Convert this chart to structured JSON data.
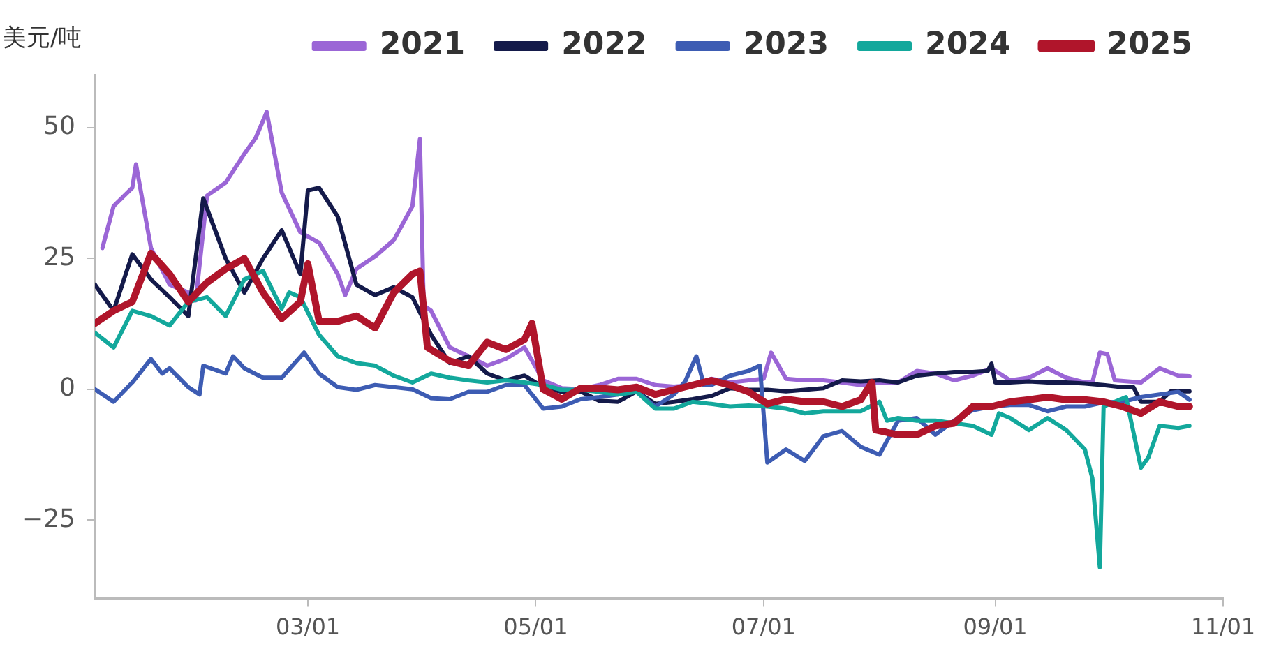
{
  "chart_data": {
    "type": "line",
    "ylabel": "美元/吨",
    "legend": "top",
    "grid": false,
    "marker": "none",
    "line_style": "solid",
    "xlim": [
      "--01-03",
      "--11-01"
    ],
    "xticks": [
      {
        "value": "--03-01",
        "label": "03/01"
      },
      {
        "value": "--05-01",
        "label": "05/01"
      },
      {
        "value": "--07-01",
        "label": "07/01"
      },
      {
        "value": "--09-01",
        "label": "09/01"
      },
      {
        "value": "--11-01",
        "label": "11/01"
      }
    ],
    "ylim": [
      -40,
      60
    ],
    "yticks": [
      {
        "value": -25,
        "label": "−25"
      },
      0,
      25,
      50
    ],
    "series": [
      {
        "name": "2021",
        "color": "#9b66d6",
        "x": [
          "--01-05",
          "--01-08",
          "--01-13",
          "--01-14",
          "--01-18",
          "--01-23",
          "--01-28",
          "--01-30",
          "--02-02",
          "--02-07",
          "--02-12",
          "--02-15",
          "--02-18",
          "--02-22",
          "--02-27",
          "--03-04",
          "--03-09",
          "--03-11",
          "--03-14",
          "--03-19",
          "--03-24",
          "--03-29",
          "--03-31",
          "--04-01",
          "--04-03",
          "--04-08",
          "--04-13",
          "--04-18",
          "--04-23",
          "--04-28",
          "--05-03",
          "--05-08",
          "--05-13",
          "--05-18",
          "--05-23",
          "--05-28",
          "--06-02",
          "--06-07",
          "--06-12",
          "--06-17",
          "--06-22",
          "--06-27",
          "--07-01",
          "--07-03",
          "--07-07",
          "--07-12",
          "--07-17",
          "--07-22",
          "--07-27",
          "--08-01",
          "--08-06",
          "--08-11",
          "--08-16",
          "--08-21",
          "--08-26",
          "--08-31",
          "--09-05",
          "--09-10",
          "--09-15",
          "--09-20",
          "--09-25",
          "--09-27",
          "--09-29",
          "--10-01",
          "--10-03",
          "--10-10",
          "--10-15",
          "--10-20",
          "--10-23"
        ],
        "values": [
          27,
          35,
          38.5,
          43,
          27,
          20,
          18.5,
          17,
          37,
          39.5,
          45,
          48,
          53,
          37.6,
          30,
          28,
          22,
          18,
          23,
          25.4,
          28.5,
          35,
          47.8,
          16,
          15,
          8,
          6.3,
          4.5,
          5.8,
          8,
          1.7,
          0.2,
          0,
          0.8,
          2,
          2,
          0.8,
          0.5,
          0.8,
          2,
          1.3,
          1.7,
          2,
          7,
          2,
          1.7,
          1.7,
          1.3,
          0.8,
          1.3,
          1.3,
          3.5,
          3,
          1.7,
          2.6,
          4,
          1.7,
          2.2,
          4,
          2.2,
          1.3,
          1.3,
          7,
          6.7,
          1.7,
          1.3,
          4,
          2.6,
          2.5
        ]
      },
      {
        "name": "2022",
        "color": "#141a4a",
        "x": [
          "--01-03",
          "--01-08",
          "--01-13",
          "--01-18",
          "--01-23",
          "--01-28",
          "--02-01",
          "--02-07",
          "--02-12",
          "--02-17",
          "--02-22",
          "--02-27",
          "--03-01",
          "--03-04",
          "--03-09",
          "--03-14",
          "--03-19",
          "--03-24",
          "--03-29",
          "--04-03",
          "--04-08",
          "--04-13",
          "--04-18",
          "--04-23",
          "--04-28",
          "--05-03",
          "--05-08",
          "--05-13",
          "--05-18",
          "--05-23",
          "--05-28",
          "--06-02",
          "--06-07",
          "--06-12",
          "--06-17",
          "--06-22",
          "--06-27",
          "--07-02",
          "--07-07",
          "--07-12",
          "--07-17",
          "--07-22",
          "--07-27",
          "--08-01",
          "--08-06",
          "--08-11",
          "--08-16",
          "--08-21",
          "--08-26",
          "--08-30",
          "--08-31",
          "--09-01",
          "--09-05",
          "--09-10",
          "--09-15",
          "--09-20",
          "--09-25",
          "--09-30",
          "--10-05",
          "--10-08",
          "--10-10",
          "--10-15",
          "--10-18",
          "--10-23"
        ],
        "values": [
          20,
          15,
          25.8,
          21,
          17.6,
          14,
          36.5,
          25,
          18.5,
          25,
          30.4,
          22,
          38,
          38.5,
          33,
          20,
          18,
          19.5,
          17.6,
          10.4,
          5,
          6.3,
          3,
          1.7,
          2.6,
          0.4,
          -0.5,
          -0.4,
          -2.2,
          -2.4,
          -0.4,
          -2.8,
          -2.4,
          -1.9,
          -1.3,
          0.2,
          -0.1,
          -0.1,
          -0.4,
          -0.1,
          0.2,
          1.7,
          1.5,
          1.7,
          1.3,
          2.6,
          3,
          3.3,
          3.3,
          3.5,
          4.9,
          1.3,
          1.3,
          1.5,
          1.3,
          1.3,
          1.1,
          0.8,
          0.4,
          0.4,
          -2.4,
          -2.4,
          -0.4,
          -0.4
        ]
      },
      {
        "name": "2023",
        "color": "#3d5cb3",
        "x": [
          "--01-03",
          "--01-08",
          "--01-13",
          "--01-18",
          "--01-21",
          "--01-23",
          "--01-28",
          "--01-31",
          "--02-01",
          "--02-07",
          "--02-09",
          "--02-12",
          "--02-17",
          "--02-22",
          "--02-28",
          "--03-04",
          "--03-09",
          "--03-14",
          "--03-19",
          "--03-24",
          "--03-29",
          "--04-03",
          "--04-08",
          "--04-13",
          "--04-18",
          "--04-23",
          "--04-28",
          "--05-03",
          "--05-08",
          "--05-13",
          "--05-18",
          "--05-23",
          "--05-28",
          "--06-02",
          "--06-07",
          "--06-10",
          "--06-13",
          "--06-15",
          "--06-17",
          "--06-22",
          "--06-27",
          "--06-30",
          "--07-02",
          "--07-07",
          "--07-12",
          "--07-17",
          "--07-22",
          "--07-27",
          "--08-01",
          "--08-06",
          "--08-11",
          "--08-16",
          "--08-21",
          "--08-26",
          "--08-31",
          "--09-05",
          "--09-10",
          "--09-15",
          "--09-20",
          "--09-25",
          "--09-30",
          "--10-05",
          "--10-10",
          "--10-15",
          "--10-20",
          "--10-23"
        ],
        "values": [
          0,
          -2.4,
          1.3,
          5.8,
          3,
          4,
          0.4,
          -1,
          4.5,
          3,
          6.3,
          4,
          2.2,
          2.2,
          7,
          3,
          0.4,
          -0.1,
          0.8,
          0.4,
          0,
          -1.7,
          -1.9,
          -0.5,
          -0.5,
          0.8,
          0.8,
          -3.7,
          -3.3,
          -1.9,
          -1.5,
          -1,
          -0.4,
          -3.3,
          -1,
          1.5,
          6.3,
          0.8,
          0.8,
          2.6,
          3.5,
          4.5,
          -14,
          -11.5,
          -13.7,
          -9,
          -8,
          -11,
          -12.5,
          -6,
          -5.5,
          -8.7,
          -6,
          -4,
          -3.3,
          -3,
          -3,
          -4.2,
          -3.3,
          -3.3,
          -2.5,
          -2.4,
          -1.5,
          -1,
          -0.5,
          -2
        ]
      },
      {
        "name": "2024",
        "color": "#13a89c",
        "x": [
          "--01-03",
          "--01-08",
          "--01-13",
          "--01-18",
          "--01-23",
          "--01-28",
          "--02-02",
          "--02-07",
          "--02-12",
          "--02-17",
          "--02-22",
          "--02-24",
          "--02-27",
          "--03-04",
          "--03-09",
          "--03-14",
          "--03-19",
          "--03-24",
          "--03-29",
          "--04-03",
          "--04-08",
          "--04-13",
          "--04-18",
          "--04-23",
          "--04-28",
          "--05-03",
          "--05-08",
          "--05-13",
          "--05-18",
          "--05-23",
          "--05-28",
          "--06-02",
          "--06-07",
          "--06-12",
          "--06-17",
          "--06-22",
          "--06-27",
          "--07-02",
          "--07-07",
          "--07-12",
          "--07-17",
          "--07-22",
          "--07-27",
          "--08-01",
          "--08-03",
          "--08-06",
          "--08-11",
          "--08-16",
          "--08-21",
          "--08-26",
          "--08-31",
          "--09-02",
          "--09-05",
          "--09-10",
          "--09-15",
          "--09-20",
          "--09-25",
          "--09-27",
          "--09-29",
          "--09-30",
          "--10-06",
          "--10-10",
          "--10-12",
          "--10-15",
          "--10-20",
          "--10-23"
        ],
        "values": [
          10.8,
          8,
          15,
          14,
          12.2,
          16.7,
          17.6,
          14,
          21,
          22.6,
          15.4,
          18.5,
          17.6,
          10.4,
          6.3,
          5,
          4.5,
          2.6,
          1.3,
          3,
          2.2,
          1.7,
          1.3,
          1.7,
          1.3,
          0.8,
          -0.1,
          -0.1,
          -0.5,
          -1,
          -0.5,
          -3.7,
          -3.7,
          -2.4,
          -2.8,
          -3.3,
          -3.1,
          -3.3,
          -3.7,
          -4.6,
          -4.2,
          -4.2,
          -4.2,
          -2.4,
          -6,
          -5.5,
          -6,
          -6,
          -6.5,
          -7,
          -8.7,
          -4.6,
          -5.5,
          -7.8,
          -5.5,
          -7.8,
          -11.5,
          -17,
          -34,
          -3.3,
          -1.5,
          -15,
          -13,
          -7,
          -7.4,
          -7
        ]
      },
      {
        "name": "2025",
        "color": "#b0152b",
        "x": [
          "--01-03",
          "--01-08",
          "--01-13",
          "--01-18",
          "--01-23",
          "--01-28",
          "--02-02",
          "--02-07",
          "--02-12",
          "--02-17",
          "--02-22",
          "--02-27",
          "--03-01",
          "--03-04",
          "--03-09",
          "--03-14",
          "--03-19",
          "--03-24",
          "--03-29",
          "--03-31",
          "--04-02",
          "--04-08",
          "--04-13",
          "--04-18",
          "--04-23",
          "--04-28",
          "--04-30",
          "--05-03",
          "--05-08",
          "--05-13",
          "--05-18",
          "--05-23",
          "--05-28",
          "--06-02",
          "--06-07",
          "--06-12",
          "--06-17",
          "--06-22",
          "--06-27",
          "--07-02",
          "--07-07",
          "--07-12",
          "--07-17",
          "--07-22",
          "--07-27",
          "--07-30",
          "--07-31",
          "--08-06",
          "--08-11",
          "--08-16",
          "--08-21",
          "--08-26",
          "--08-31",
          "--09-05",
          "--09-10",
          "--09-15",
          "--09-20",
          "--09-25",
          "--09-30",
          "--10-05",
          "--10-10",
          "--10-15",
          "--10-20",
          "--10-23"
        ],
        "values": [
          12.6,
          15,
          16.7,
          26,
          22,
          16.7,
          20.4,
          23,
          25,
          18.5,
          13.5,
          16.7,
          24,
          13,
          13,
          14,
          11.7,
          18.5,
          22,
          22.6,
          8,
          5.4,
          4.5,
          9,
          7.6,
          9.5,
          12.6,
          0,
          -1.9,
          0.2,
          0.2,
          -0.1,
          0.4,
          -1,
          -0.1,
          0.8,
          1.7,
          0.8,
          -0.5,
          -2.8,
          -1.9,
          -2.4,
          -2.4,
          -3.3,
          -2,
          1.3,
          -7.8,
          -8.7,
          -8.7,
          -7,
          -6.5,
          -3.3,
          -3.3,
          -2.4,
          -2,
          -1.5,
          -2,
          -2,
          -2.4,
          -3.3,
          -4.6,
          -2.4,
          -3.3,
          -3.3
        ]
      }
    ]
  }
}
